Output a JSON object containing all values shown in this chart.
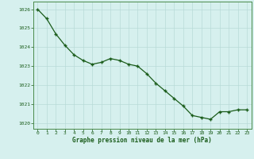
{
  "x": [
    0,
    1,
    2,
    3,
    4,
    5,
    6,
    7,
    8,
    9,
    10,
    11,
    12,
    13,
    14,
    15,
    16,
    17,
    18,
    19,
    20,
    21,
    22,
    23
  ],
  "y": [
    1026.0,
    1025.5,
    1024.7,
    1024.1,
    1023.6,
    1023.3,
    1023.1,
    1023.2,
    1023.4,
    1023.3,
    1023.1,
    1023.0,
    1022.6,
    1022.1,
    1021.7,
    1021.3,
    1020.9,
    1020.4,
    1020.3,
    1020.2,
    1020.6,
    1020.6,
    1020.7,
    1020.7
  ],
  "ylim": [
    1019.7,
    1026.4
  ],
  "yticks": [
    1020,
    1021,
    1022,
    1023,
    1024,
    1025,
    1026
  ],
  "xticks": [
    0,
    1,
    2,
    3,
    4,
    5,
    6,
    7,
    8,
    9,
    10,
    11,
    12,
    13,
    14,
    15,
    16,
    17,
    18,
    19,
    20,
    21,
    22,
    23
  ],
  "xlabel": "Graphe pression niveau de la mer (hPa)",
  "line_color": "#1a5c1a",
  "marker_color": "#1a5c1a",
  "bg_color": "#d6f0ee",
  "grid_color": "#b8dbd8",
  "xlabel_color": "#1a5c1a",
  "tick_color": "#1a5c1a",
  "border_color": "#4a8a4a"
}
